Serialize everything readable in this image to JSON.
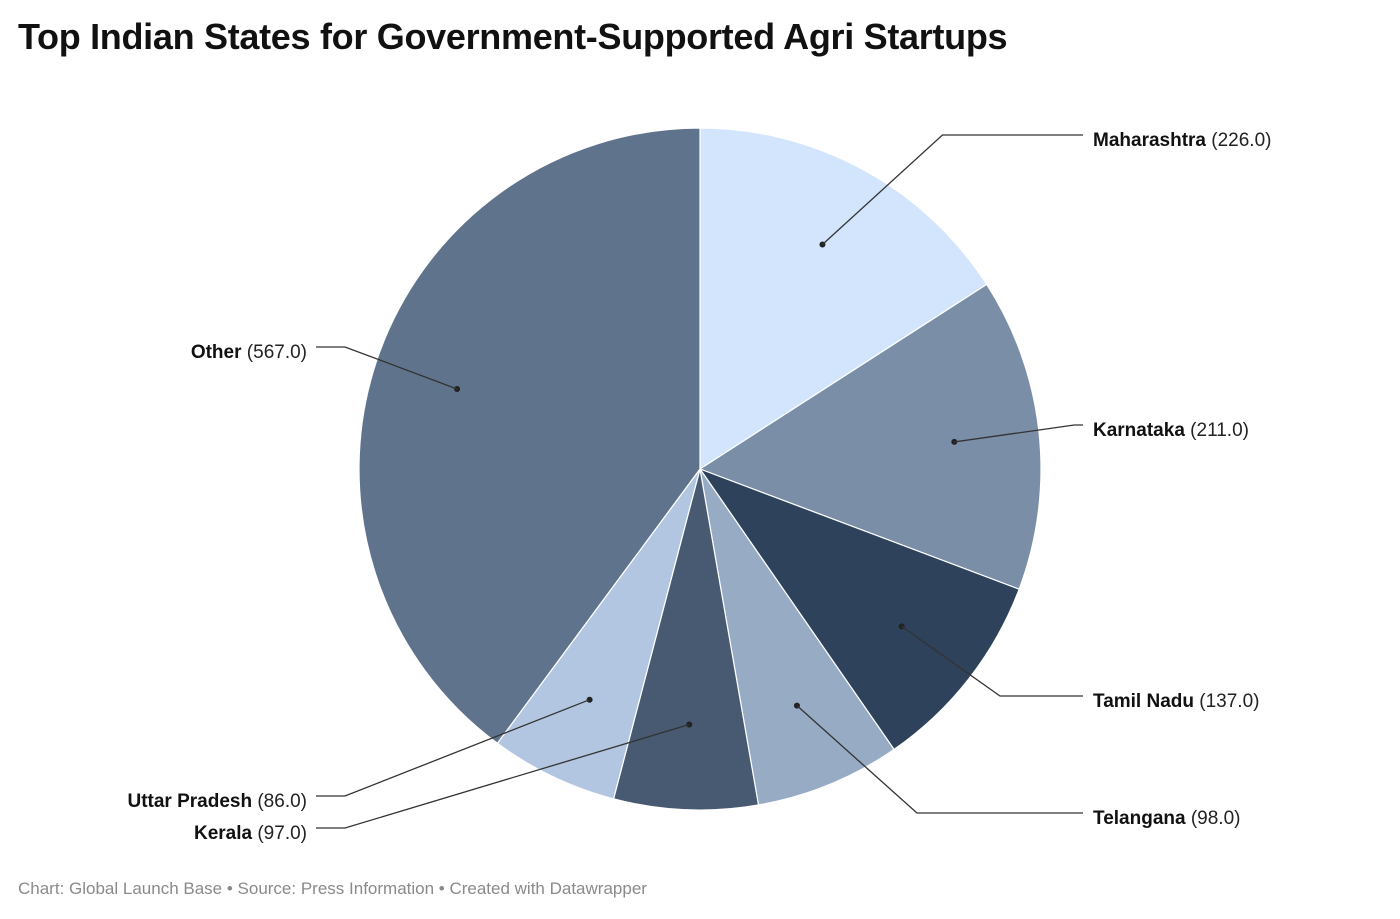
{
  "chart_data": {
    "type": "pie",
    "title": "Top Indian States for Government-Supported Agri Startups",
    "slices": [
      {
        "label": "Maharashtra",
        "value": 226.0,
        "display": "(226.0)",
        "color": "#d2e5fd",
        "side": "right"
      },
      {
        "label": "Karnataka",
        "value": 211.0,
        "display": "(211.0)",
        "color": "#7b8ea8",
        "side": "right"
      },
      {
        "label": "Tamil Nadu",
        "value": 137.0,
        "display": "(137.0)",
        "color": "#2e425c",
        "side": "right"
      },
      {
        "label": "Telangana",
        "value": 98.0,
        "display": "(98.0)",
        "color": "#97abc5",
        "side": "right"
      },
      {
        "label": "Kerala",
        "value": 97.0,
        "display": "(97.0)",
        "color": "#475a72",
        "side": "left"
      },
      {
        "label": "Uttar Pradesh",
        "value": 86.0,
        "display": "(86.0)",
        "color": "#b3c6e1",
        "side": "left"
      },
      {
        "label": "Other",
        "value": 567.0,
        "display": "(567.0)",
        "color": "#60738c",
        "side": "left"
      }
    ],
    "legend": "none"
  },
  "footer": {
    "credit": "Chart: Global Launch Base • Source: Press Information  • Created with Datawrapper"
  }
}
